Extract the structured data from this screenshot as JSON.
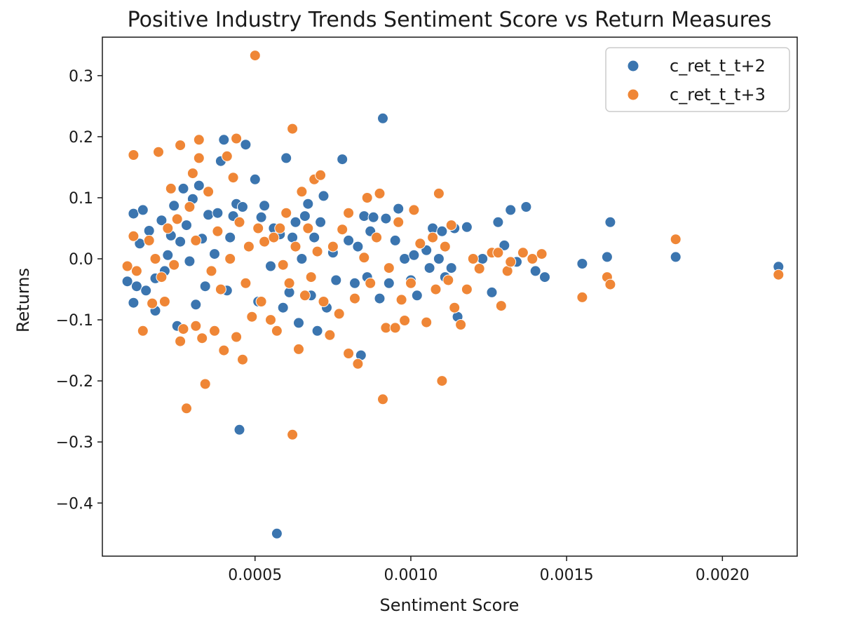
{
  "chart_data": {
    "type": "scatter",
    "title": "Positive Industry Trends Sentiment Score vs Return Measures",
    "xlabel": "Sentiment Score",
    "ylabel": "Returns",
    "xlim": [
      1e-05,
      0.00224
    ],
    "ylim": [
      -0.487,
      0.363
    ],
    "xticks": [
      0.0005,
      0.001,
      0.0015,
      0.002
    ],
    "xtick_labels": [
      "0.0005",
      "0.0010",
      "0.0015",
      "0.0020"
    ],
    "yticks": [
      -0.4,
      -0.3,
      -0.2,
      -0.1,
      0.0,
      0.1,
      0.2,
      0.3
    ],
    "ytick_labels": [
      "−0.4",
      "−0.3",
      "−0.2",
      "−0.1",
      "0.0",
      "0.1",
      "0.2",
      "0.3"
    ],
    "grid": false,
    "legend_position": "top-right",
    "series": [
      {
        "name": "c_ret_t_t+2",
        "color": "#3b75af",
        "points": [
          [
            9e-05,
            -0.037
          ],
          [
            0.00011,
            -0.072
          ],
          [
            0.00011,
            0.074
          ],
          [
            0.00014,
            0.08
          ],
          [
            0.00012,
            -0.045
          ],
          [
            0.00015,
            -0.052
          ],
          [
            0.00013,
            0.025
          ],
          [
            0.00016,
            0.046
          ],
          [
            0.00018,
            -0.085
          ],
          [
            0.00018,
            -0.032
          ],
          [
            0.0002,
            0.063
          ],
          [
            0.00021,
            -0.02
          ],
          [
            0.00022,
            0.006
          ],
          [
            0.00023,
            0.038
          ],
          [
            0.00024,
            0.087
          ],
          [
            0.00025,
            -0.11
          ],
          [
            0.00026,
            0.028
          ],
          [
            0.00027,
            0.115
          ],
          [
            0.00028,
            0.055
          ],
          [
            0.00029,
            -0.004
          ],
          [
            0.0003,
            0.098
          ],
          [
            0.00031,
            -0.075
          ],
          [
            0.00032,
            0.12
          ],
          [
            0.00033,
            0.033
          ],
          [
            0.00034,
            -0.045
          ],
          [
            0.00035,
            0.072
          ],
          [
            0.00037,
            0.008
          ],
          [
            0.00038,
            0.075
          ],
          [
            0.00039,
            0.16
          ],
          [
            0.0004,
            0.195
          ],
          [
            0.00041,
            -0.052
          ],
          [
            0.00042,
            0.035
          ],
          [
            0.00043,
            0.07
          ],
          [
            0.00044,
            0.09
          ],
          [
            0.00045,
            -0.28
          ],
          [
            0.00046,
            0.085
          ],
          [
            0.00047,
            0.187
          ],
          [
            0.00048,
            0.02
          ],
          [
            0.0005,
            0.13
          ],
          [
            0.00051,
            -0.07
          ],
          [
            0.00052,
            0.068
          ],
          [
            0.00053,
            0.087
          ],
          [
            0.00055,
            -0.012
          ],
          [
            0.00056,
            0.05
          ],
          [
            0.00057,
            -0.45
          ],
          [
            0.00058,
            0.04
          ],
          [
            0.00059,
            -0.08
          ],
          [
            0.0006,
            0.165
          ],
          [
            0.00061,
            -0.055
          ],
          [
            0.00062,
            0.035
          ],
          [
            0.00063,
            0.06
          ],
          [
            0.00064,
            -0.105
          ],
          [
            0.00065,
            0.0
          ],
          [
            0.00066,
            0.07
          ],
          [
            0.00067,
            0.09
          ],
          [
            0.00068,
            -0.06
          ],
          [
            0.00069,
            0.035
          ],
          [
            0.0007,
            -0.118
          ],
          [
            0.00071,
            0.06
          ],
          [
            0.00072,
            0.103
          ],
          [
            0.00073,
            -0.08
          ],
          [
            0.00075,
            0.01
          ],
          [
            0.00076,
            -0.035
          ],
          [
            0.00078,
            0.163
          ],
          [
            0.0008,
            0.03
          ],
          [
            0.00082,
            -0.04
          ],
          [
            0.00083,
            0.02
          ],
          [
            0.00084,
            -0.158
          ],
          [
            0.00085,
            0.07
          ],
          [
            0.00086,
            -0.03
          ],
          [
            0.00087,
            0.045
          ],
          [
            0.00088,
            0.068
          ],
          [
            0.0009,
            -0.065
          ],
          [
            0.00091,
            0.23
          ],
          [
            0.00092,
            0.066
          ],
          [
            0.00093,
            -0.04
          ],
          [
            0.00095,
            0.03
          ],
          [
            0.00096,
            0.082
          ],
          [
            0.00098,
            0.0
          ],
          [
            0.001,
            -0.035
          ],
          [
            0.00101,
            0.006
          ],
          [
            0.00102,
            -0.06
          ],
          [
            0.00105,
            0.014
          ],
          [
            0.00106,
            -0.015
          ],
          [
            0.00107,
            0.05
          ],
          [
            0.00109,
            0.0
          ],
          [
            0.0011,
            0.045
          ],
          [
            0.00111,
            -0.03
          ],
          [
            0.00113,
            -0.015
          ],
          [
            0.00114,
            0.05
          ],
          [
            0.00115,
            -0.095
          ],
          [
            0.00118,
            0.052
          ],
          [
            0.00123,
            0.0
          ],
          [
            0.00126,
            -0.055
          ],
          [
            0.00128,
            0.06
          ],
          [
            0.0013,
            0.022
          ],
          [
            0.00132,
            0.08
          ],
          [
            0.00134,
            -0.005
          ],
          [
            0.00137,
            0.085
          ],
          [
            0.0014,
            -0.02
          ],
          [
            0.00143,
            -0.03
          ],
          [
            0.00155,
            -0.008
          ],
          [
            0.00163,
            0.003
          ],
          [
            0.00164,
            0.06
          ],
          [
            0.00185,
            0.003
          ],
          [
            0.00218,
            -0.013
          ]
        ]
      },
      {
        "name": "c_ret_t_t+3",
        "color": "#ef8636",
        "points": [
          [
            9e-05,
            -0.012
          ],
          [
            0.00011,
            0.17
          ],
          [
            0.00011,
            0.037
          ],
          [
            0.00012,
            -0.02
          ],
          [
            0.00014,
            -0.118
          ],
          [
            0.00016,
            0.03
          ],
          [
            0.00017,
            -0.073
          ],
          [
            0.00018,
            0.0
          ],
          [
            0.00019,
            0.175
          ],
          [
            0.0002,
            -0.03
          ],
          [
            0.00021,
            -0.07
          ],
          [
            0.00022,
            0.05
          ],
          [
            0.00023,
            0.115
          ],
          [
            0.00024,
            -0.01
          ],
          [
            0.00025,
            0.065
          ],
          [
            0.00026,
            0.186
          ],
          [
            0.00026,
            -0.135
          ],
          [
            0.00027,
            -0.115
          ],
          [
            0.00028,
            -0.245
          ],
          [
            0.00029,
            0.085
          ],
          [
            0.0003,
            0.14
          ],
          [
            0.00031,
            -0.11
          ],
          [
            0.00031,
            0.03
          ],
          [
            0.00032,
            0.195
          ],
          [
            0.00032,
            0.165
          ],
          [
            0.00033,
            -0.13
          ],
          [
            0.00034,
            -0.205
          ],
          [
            0.00035,
            0.11
          ],
          [
            0.00036,
            -0.02
          ],
          [
            0.00037,
            -0.118
          ],
          [
            0.00038,
            0.045
          ],
          [
            0.00039,
            -0.05
          ],
          [
            0.0004,
            -0.15
          ],
          [
            0.00041,
            0.168
          ],
          [
            0.00042,
            0.0
          ],
          [
            0.00043,
            0.133
          ],
          [
            0.00044,
            -0.128
          ],
          [
            0.00044,
            0.197
          ],
          [
            0.00045,
            0.06
          ],
          [
            0.00046,
            -0.165
          ],
          [
            0.00047,
            -0.04
          ],
          [
            0.00048,
            0.02
          ],
          [
            0.00049,
            -0.095
          ],
          [
            0.0005,
            0.333
          ],
          [
            0.00051,
            0.05
          ],
          [
            0.00052,
            -0.07
          ],
          [
            0.00053,
            0.028
          ],
          [
            0.00055,
            -0.1
          ],
          [
            0.00056,
            0.035
          ],
          [
            0.00057,
            -0.118
          ],
          [
            0.00058,
            0.05
          ],
          [
            0.00059,
            -0.01
          ],
          [
            0.0006,
            0.075
          ],
          [
            0.00061,
            -0.04
          ],
          [
            0.00062,
            -0.288
          ],
          [
            0.00062,
            0.213
          ],
          [
            0.00063,
            0.02
          ],
          [
            0.00064,
            -0.148
          ],
          [
            0.00065,
            0.11
          ],
          [
            0.00066,
            -0.06
          ],
          [
            0.00067,
            0.05
          ],
          [
            0.00068,
            -0.03
          ],
          [
            0.00069,
            0.13
          ],
          [
            0.0007,
            0.012
          ],
          [
            0.00071,
            0.137
          ],
          [
            0.00072,
            -0.07
          ],
          [
            0.00074,
            -0.125
          ],
          [
            0.00075,
            0.02
          ],
          [
            0.00077,
            -0.09
          ],
          [
            0.00078,
            0.048
          ],
          [
            0.0008,
            -0.155
          ],
          [
            0.0008,
            0.075
          ],
          [
            0.00082,
            -0.065
          ],
          [
            0.00083,
            -0.172
          ],
          [
            0.00085,
            0.002
          ],
          [
            0.00086,
            0.1
          ],
          [
            0.00087,
            -0.04
          ],
          [
            0.00089,
            0.035
          ],
          [
            0.0009,
            0.107
          ],
          [
            0.00091,
            -0.23
          ],
          [
            0.00092,
            -0.113
          ],
          [
            0.00093,
            -0.015
          ],
          [
            0.00095,
            -0.113
          ],
          [
            0.00096,
            0.06
          ],
          [
            0.00097,
            -0.067
          ],
          [
            0.00098,
            -0.101
          ],
          [
            0.001,
            -0.04
          ],
          [
            0.00101,
            0.08
          ],
          [
            0.00103,
            0.025
          ],
          [
            0.00105,
            -0.104
          ],
          [
            0.00107,
            0.035
          ],
          [
            0.00108,
            -0.05
          ],
          [
            0.00109,
            0.107
          ],
          [
            0.0011,
            -0.2
          ],
          [
            0.00111,
            0.02
          ],
          [
            0.00112,
            -0.035
          ],
          [
            0.00113,
            0.055
          ],
          [
            0.00114,
            -0.08
          ],
          [
            0.00116,
            -0.108
          ],
          [
            0.00118,
            -0.05
          ],
          [
            0.0012,
            0.0
          ],
          [
            0.00122,
            -0.016
          ],
          [
            0.00126,
            0.01
          ],
          [
            0.00128,
            0.01
          ],
          [
            0.00129,
            -0.077
          ],
          [
            0.00131,
            -0.02
          ],
          [
            0.00132,
            -0.005
          ],
          [
            0.00136,
            0.01
          ],
          [
            0.00139,
            0.0
          ],
          [
            0.00142,
            0.008
          ],
          [
            0.00155,
            -0.063
          ],
          [
            0.00163,
            -0.03
          ],
          [
            0.00164,
            -0.042
          ],
          [
            0.00185,
            0.032
          ],
          [
            0.00218,
            -0.026
          ]
        ]
      }
    ]
  }
}
